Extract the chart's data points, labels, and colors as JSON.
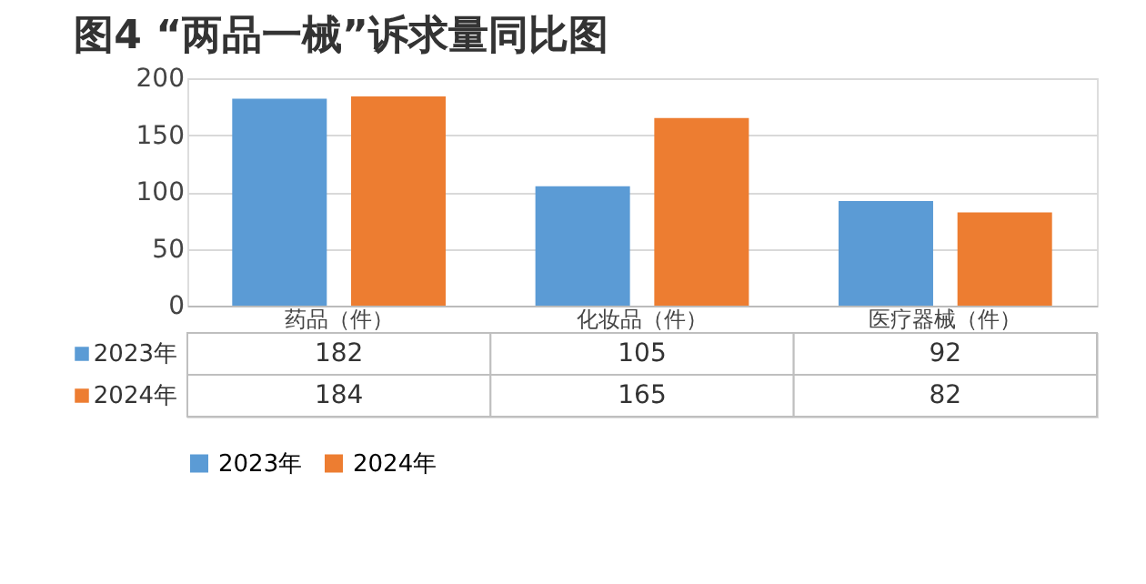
{
  "chart_data": {
    "type": "bar",
    "title": "图4 “两品一械”诉求量同比图",
    "categories": [
      "药品（件）",
      "化妆品（件）",
      "医疗器械（件）"
    ],
    "series": [
      {
        "name": "2023年",
        "color": "#5b9bd5",
        "values": [
          182,
          105,
          92
        ]
      },
      {
        "name": "2024年",
        "color": "#ed7d31",
        "values": [
          184,
          165,
          82
        ]
      }
    ],
    "ylim": [
      0,
      200
    ],
    "yticks": [
      0,
      50,
      100,
      150,
      200
    ],
    "grid": "y",
    "legend": "bottom",
    "data_labels": true
  }
}
